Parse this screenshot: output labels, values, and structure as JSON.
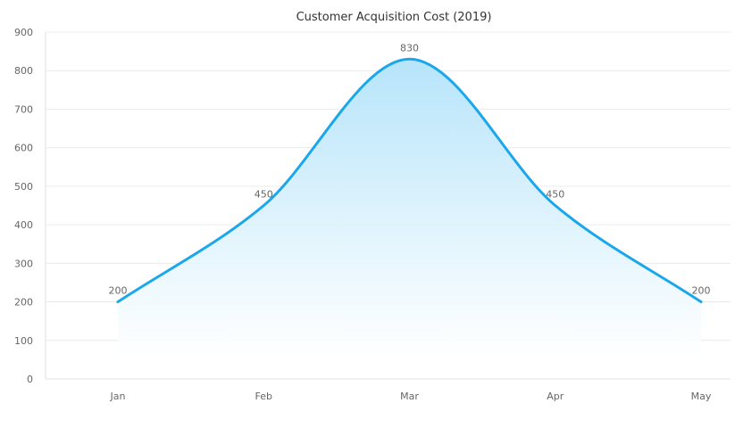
{
  "chart_data": {
    "type": "area",
    "title": "Customer Acquisition Cost (2019)",
    "xlabel": "",
    "ylabel": "",
    "categories": [
      "Jan",
      "Feb",
      "Mar",
      "Apr",
      "May"
    ],
    "values": [
      200,
      450,
      830,
      450,
      200
    ],
    "data_labels": [
      "200",
      "450",
      "830",
      "450",
      "200"
    ],
    "ylim": [
      0,
      900
    ],
    "yticks": [
      0,
      100,
      200,
      300,
      400,
      500,
      600,
      700,
      800,
      900
    ],
    "ytick_labels": [
      "0",
      "100",
      "200",
      "300",
      "400",
      "500",
      "600",
      "700",
      "800",
      "900"
    ],
    "smooth": true,
    "grid": true,
    "legend": "none",
    "colors": {
      "line": "#1aa7ec",
      "fill_top": "#b3e3fa",
      "fill_bottom": "#ffffff"
    }
  }
}
